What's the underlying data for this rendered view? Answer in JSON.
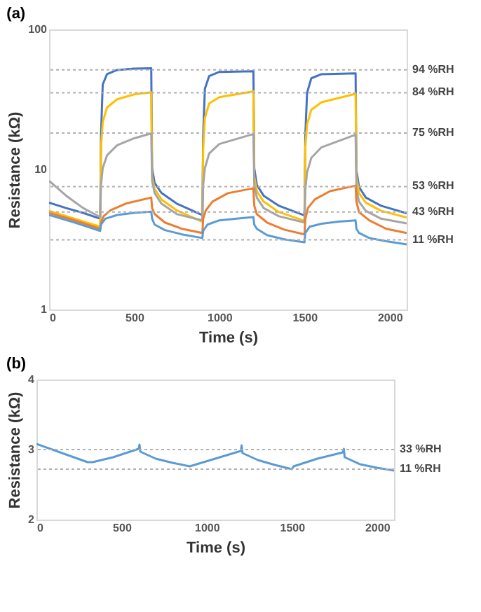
{
  "chart_data": [
    {
      "type": "line",
      "title": "(a)",
      "xlabel": "Time (s)",
      "ylabel": "Resistance (kΩ)",
      "log": true,
      "xlim": [
        0,
        2100
      ],
      "xticks": [
        0,
        500,
        1000,
        1500,
        2000
      ],
      "ylim": [
        1,
        100
      ],
      "yticks": [
        1,
        10,
        100
      ],
      "series": [
        {
          "color": "#4472c4",
          "x": [
            0,
            100,
            200,
            300,
            305,
            315,
            340,
            400,
            500,
            600,
            605,
            620,
            660,
            750,
            900,
            905,
            915,
            940,
            1000,
            1200,
            1205,
            1220,
            1260,
            1350,
            1500,
            1505,
            1515,
            1540,
            1600,
            1800,
            1805,
            1820,
            1860,
            1950,
            2100
          ],
          "values": [
            5.8,
            5.3,
            4.9,
            4.45,
            17.7,
            40.4,
            47.9,
            51.3,
            52.5,
            52.8,
            10.2,
            8.0,
            6.8,
            5.7,
            4.73,
            17.7,
            37.7,
            46.4,
            49.7,
            50.2,
            10.2,
            7.76,
            6.5,
            5.5,
            4.7,
            17.7,
            35.2,
            44.8,
            47.9,
            48.6,
            9.9,
            7.5,
            6.3,
            5.5,
            4.86
          ]
        },
        {
          "color": "#ffc000",
          "x": [
            0,
            150,
            300,
            305,
            315,
            340,
            400,
            500,
            600,
            605,
            620,
            660,
            750,
            900,
            905,
            915,
            940,
            1000,
            1200,
            1205,
            1220,
            1260,
            1350,
            1500,
            1505,
            1515,
            1540,
            1600,
            1800,
            1805,
            1820,
            1860,
            1950,
            2100
          ],
          "values": [
            5.06,
            4.45,
            3.9,
            14.4,
            21.7,
            27.7,
            31.7,
            34.4,
            35.6,
            8.9,
            7.24,
            6.1,
            5.1,
            4.24,
            14.4,
            23.3,
            29.6,
            32.8,
            36.1,
            8.9,
            7.0,
            5.9,
            4.96,
            4.3,
            14.4,
            21,
            26.7,
            30.2,
            34.7,
            8.9,
            6.77,
            5.8,
            5.06,
            4.54
          ]
        },
        {
          "color": "#a5a5a5",
          "x": [
            0,
            100,
            200,
            300,
            305,
            315,
            340,
            400,
            500,
            600,
            605,
            620,
            660,
            750,
            900,
            905,
            915,
            940,
            1000,
            1200,
            1205,
            1220,
            1260,
            1350,
            1500,
            1505,
            1515,
            1540,
            1600,
            1800,
            1805,
            1820,
            1860,
            1950,
            2100
          ],
          "values": [
            8.3,
            6.5,
            5.3,
            4.57,
            7.76,
            10.2,
            12.6,
            14.9,
            16.7,
            18.1,
            8.3,
            6.77,
            5.7,
            4.8,
            4.33,
            7.76,
            10.2,
            13,
            15.2,
            17.9,
            7.76,
            6.3,
            5.3,
            4.63,
            4.18,
            7.24,
            9.5,
            12.1,
            14.4,
            17.7,
            7.24,
            5.9,
            5.06,
            4.45,
            4.12
          ]
        },
        {
          "color": "#ed7d31",
          "x": [
            0,
            150,
            300,
            305,
            320,
            360,
            450,
            600,
            605,
            620,
            680,
            780,
            900,
            905,
            920,
            960,
            1050,
            1200,
            1205,
            1220,
            1280,
            1380,
            1500,
            1505,
            1520,
            1560,
            1650,
            1800,
            1805,
            1820,
            1880,
            1980,
            2100
          ],
          "values": [
            4.9,
            4.33,
            3.77,
            4.18,
            4.63,
            5.1,
            5.7,
            6.3,
            5.3,
            4.8,
            4.18,
            3.77,
            3.52,
            4.45,
            5.1,
            5.9,
            6.77,
            7.34,
            5.5,
            4.8,
            4.18,
            3.72,
            3.44,
            4.45,
            5.3,
            6.1,
            7.0,
            7.66,
            5.9,
            4.96,
            4.33,
            3.77,
            3.52
          ]
        },
        {
          "color": "#5b9bd5",
          "x": [
            0,
            150,
            300,
            305,
            330,
            400,
            500,
            600,
            605,
            620,
            680,
            780,
            900,
            905,
            930,
            1000,
            1100,
            1200,
            1205,
            1220,
            1280,
            1380,
            1500,
            1505,
            1530,
            1600,
            1700,
            1800,
            1805,
            1820,
            1880,
            1980,
            2100
          ],
          "values": [
            4.73,
            4.18,
            3.64,
            4.04,
            4.45,
            4.73,
            4.9,
            5.0,
            4.45,
            4.04,
            3.69,
            3.44,
            3.24,
            3.64,
            4.04,
            4.33,
            4.45,
            4.57,
            4.04,
            3.77,
            3.4,
            3.17,
            3.02,
            3.52,
            3.9,
            4.1,
            4.24,
            4.33,
            3.77,
            3.52,
            3.24,
            3.07,
            2.92
          ]
        }
      ],
      "ref_lines": [
        {
          "axis": "y",
          "value": 51.4,
          "label": "94 %RH",
          "color": "#b0b0b0",
          "line_style": "dotted"
        },
        {
          "axis": "y",
          "value": 35.3,
          "label": "84 %RH",
          "color": "#b0b0b0",
          "line_style": "dotted"
        },
        {
          "axis": "y",
          "value": 18.2,
          "label": "75 %RH",
          "color": "#b0b0b0",
          "line_style": "dotted"
        },
        {
          "axis": "y",
          "value": 7.55,
          "label": "53 %RH",
          "color": "#b0b0b0",
          "line_style": "dotted"
        },
        {
          "axis": "y",
          "value": 4.97,
          "label": "43 %RH",
          "color": "#b0b0b0",
          "line_style": "dotted"
        },
        {
          "axis": "y",
          "value": 3.14,
          "label": "11 %RH",
          "color": "#b0b0b0",
          "line_style": "dotted"
        }
      ]
    },
    {
      "type": "line",
      "title": "(b)",
      "xlabel": "Time (s)",
      "ylabel": "Resistance (kΩ)",
      "xlim": [
        0,
        2100
      ],
      "xticks": [
        0,
        500,
        1000,
        1500,
        2000
      ],
      "ylim": [
        2,
        4
      ],
      "yticks": [
        2,
        3,
        4
      ],
      "series": [
        {
          "color": "#5b9bd5",
          "x": [
            0,
            150,
            300,
            330,
            450,
            600,
            605,
            610,
            700,
            800,
            900,
            1050,
            1200,
            1205,
            1210,
            1300,
            1400,
            1500,
            1510,
            1650,
            1800,
            1805,
            1810,
            1900,
            2000,
            2100
          ],
          "values": [
            3.08,
            2.95,
            2.82,
            2.82,
            2.89,
            3.01,
            3.07,
            2.97,
            2.87,
            2.81,
            2.76,
            2.87,
            2.98,
            3.06,
            2.95,
            2.85,
            2.78,
            2.72,
            2.76,
            2.87,
            2.96,
            3.01,
            2.89,
            2.79,
            2.74,
            2.7
          ]
        }
      ],
      "ref_lines": [
        {
          "axis": "y",
          "value": 3.0,
          "label": "33 %RH",
          "color": "#b0b0b0",
          "line_style": "dotted"
        },
        {
          "axis": "y",
          "value": 2.72,
          "label": "11 %RH",
          "color": "#b0b0b0",
          "line_style": "dotted"
        }
      ]
    }
  ]
}
